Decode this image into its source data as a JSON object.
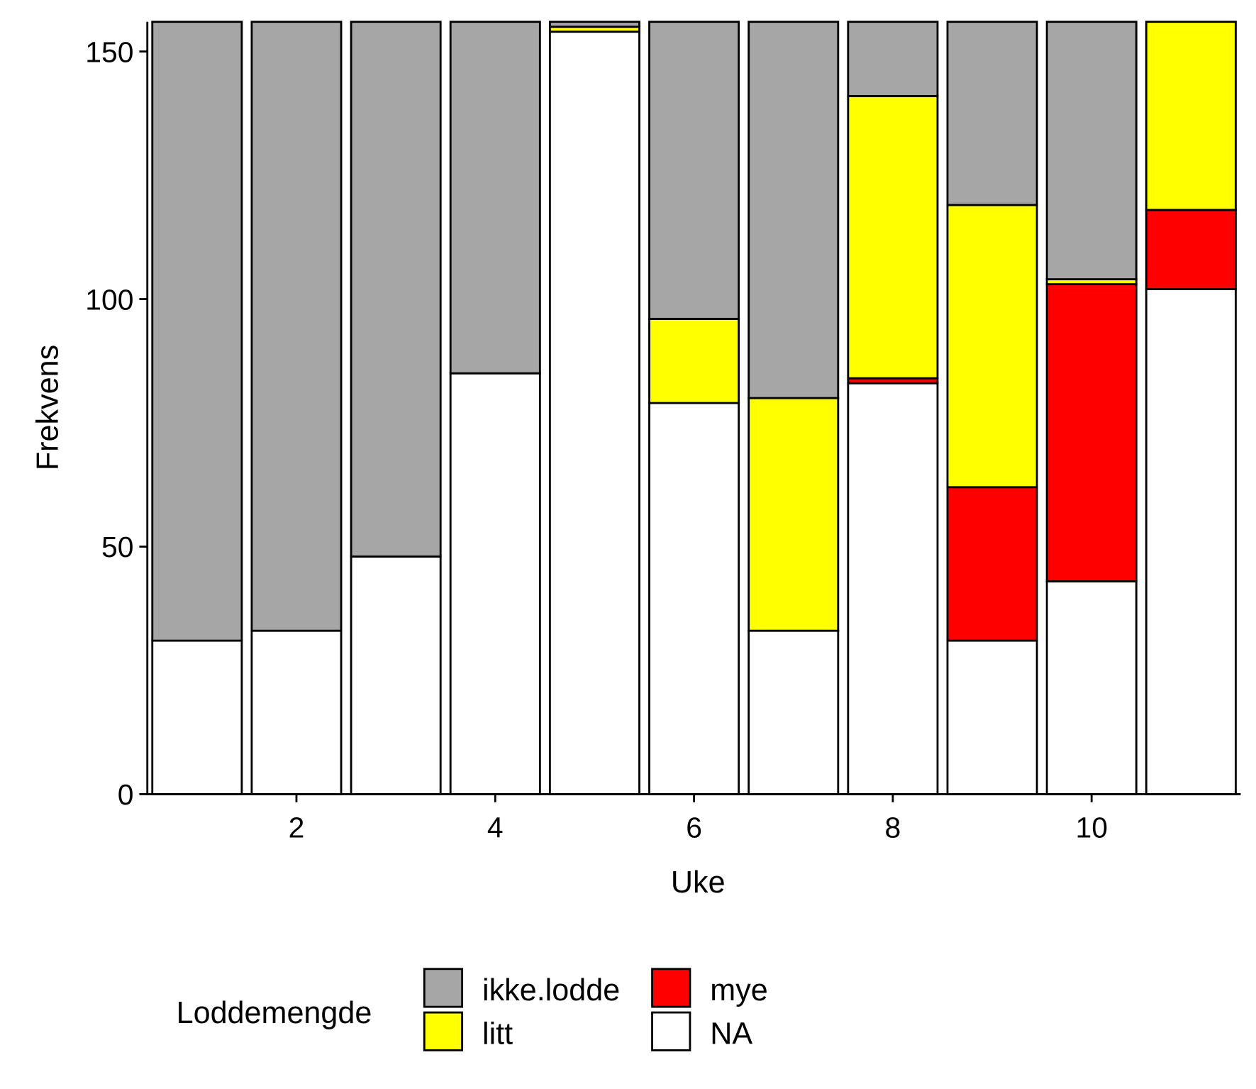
{
  "chart_data": {
    "type": "bar",
    "stacked": true,
    "xlabel": "Uke",
    "ylabel": "Frekvens",
    "ylim": [
      0,
      156
    ],
    "xlim": [
      0.5,
      11.5
    ],
    "x": [
      1,
      2,
      3,
      4,
      5,
      6,
      7,
      8,
      9,
      10,
      11
    ],
    "x_ticks": [
      2,
      4,
      6,
      8,
      10
    ],
    "y_ticks": [
      0,
      50,
      100,
      150
    ],
    "series": [
      {
        "name": "NA",
        "color": "#ffffff",
        "values": [
          31,
          33,
          48,
          85,
          154,
          79,
          33,
          83,
          31,
          43,
          102
        ]
      },
      {
        "name": "mye",
        "color": "#ff0000",
        "values": [
          0,
          0,
          0,
          0,
          0,
          0,
          0,
          1,
          31,
          60,
          16
        ]
      },
      {
        "name": "litt",
        "color": "#ffff00",
        "values": [
          0,
          0,
          0,
          0,
          1,
          17,
          47,
          57,
          57,
          1,
          38
        ]
      },
      {
        "name": "ikke.lodde",
        "color": "#a6a6a6",
        "values": [
          125,
          123,
          108,
          71,
          1,
          60,
          76,
          15,
          37,
          52,
          0
        ]
      }
    ],
    "legend": {
      "title": "Loddemengde",
      "position": "bottom",
      "entries": [
        {
          "label": "ikke.lodde",
          "color": "#a6a6a6"
        },
        {
          "label": "litt",
          "color": "#ffff00"
        },
        {
          "label": "mye",
          "color": "#ff0000"
        },
        {
          "label": "NA",
          "color": "#ffffff"
        }
      ]
    }
  }
}
